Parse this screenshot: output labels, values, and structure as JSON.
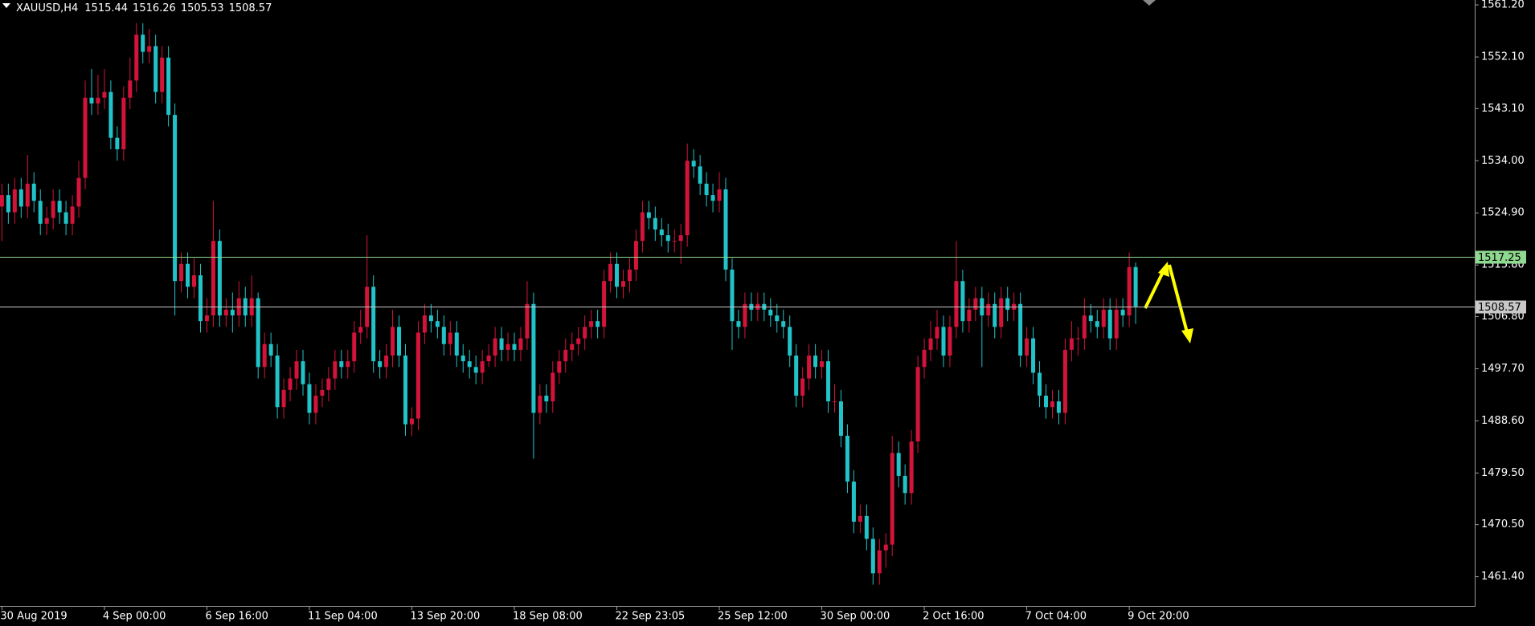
{
  "chart_data": {
    "type": "candlestick",
    "symbol": "XAUUSD,H4",
    "up_color": "#d2143a",
    "down_color": "#22c3c8",
    "ylim": [
      1456.3,
      1562.05
    ],
    "yticks": [
      {
        "value": 1461.4,
        "label": "1461.40"
      },
      {
        "value": 1470.5,
        "label": "1470.50"
      },
      {
        "value": 1479.5,
        "label": "1479.50"
      },
      {
        "value": 1488.6,
        "label": "1488.60"
      },
      {
        "value": 1497.7,
        "label": "1497.70"
      },
      {
        "value": 1506.8,
        "label": "1506.80"
      },
      {
        "value": 1515.8,
        "label": "1515.80"
      },
      {
        "value": 1524.9,
        "label": "1524.90"
      },
      {
        "value": 1534,
        "label": "1534.00"
      },
      {
        "value": 1543.1,
        "label": "1543.10"
      },
      {
        "value": 1552.1,
        "label": "1552.10"
      },
      {
        "value": 1561.2,
        "label": "1561.20"
      }
    ],
    "hlines": [
      {
        "value": 1517.25,
        "color": "#8fd88f"
      },
      {
        "value": 1508.57,
        "color": "#c8c8c8"
      }
    ],
    "categories": [
      "30 Aug 2019",
      null,
      null,
      null,
      null,
      null,
      null,
      null,
      null,
      null,
      null,
      null,
      null,
      null,
      null,
      null,
      "4 Sep 00:00",
      null,
      null,
      null,
      null,
      null,
      null,
      null,
      null,
      null,
      null,
      null,
      null,
      null,
      null,
      null,
      "6 Sep 16:00",
      null,
      null,
      null,
      null,
      null,
      null,
      null,
      null,
      null,
      null,
      null,
      null,
      null,
      null,
      null,
      "11 Sep 04:00",
      null,
      null,
      null,
      null,
      null,
      null,
      null,
      null,
      null,
      null,
      null,
      null,
      null,
      null,
      null,
      "13 Sep 20:00",
      null,
      null,
      null,
      null,
      null,
      null,
      null,
      null,
      null,
      null,
      null,
      null,
      null,
      null,
      null,
      "18 Sep 08:00",
      null,
      null,
      null,
      null,
      null,
      null,
      null,
      null,
      null,
      null,
      null,
      null,
      null,
      null,
      null,
      "22 Sep 23:05",
      null,
      null,
      null,
      null,
      null,
      null,
      null,
      null,
      null,
      null,
      null,
      null,
      null,
      null,
      null,
      "25 Sep 12:00",
      null,
      null,
      null,
      null,
      null,
      null,
      null,
      null,
      null,
      null,
      null,
      null,
      null,
      null,
      null,
      "30 Sep 00:00",
      null,
      null,
      null,
      null,
      null,
      null,
      null,
      null,
      null,
      null,
      null,
      null,
      null,
      null,
      null,
      "2 Oct 16:00",
      null,
      null,
      null,
      null,
      null,
      null,
      null,
      null,
      null,
      null,
      null,
      null,
      null,
      null,
      null,
      "7 Oct 04:00",
      null,
      null,
      null,
      null,
      null,
      null,
      null,
      null,
      null,
      null,
      null,
      null,
      null,
      null,
      null,
      "9 Oct 20:00",
      null
    ],
    "candles": [
      [
        1526,
        1530,
        1520,
        1528
      ],
      [
        1528,
        1530,
        1523,
        1525
      ],
      [
        1525,
        1531,
        1523,
        1529
      ],
      [
        1529,
        1531,
        1524,
        1526
      ],
      [
        1526,
        1535,
        1524,
        1530
      ],
      [
        1530,
        1532,
        1525,
        1527
      ],
      [
        1527,
        1529,
        1521,
        1523
      ],
      [
        1523,
        1526,
        1521,
        1524
      ],
      [
        1524,
        1529,
        1522,
        1527
      ],
      [
        1527,
        1529,
        1523,
        1525
      ],
      [
        1525,
        1527,
        1521,
        1523
      ],
      [
        1523,
        1528,
        1521,
        1526
      ],
      [
        1526,
        1534,
        1524,
        1531
      ],
      [
        1531,
        1548,
        1529,
        1545
      ],
      [
        1545,
        1550,
        1542,
        1544
      ],
      [
        1544,
        1549,
        1542,
        1545
      ],
      [
        1545,
        1550,
        1543,
        1546
      ],
      [
        1546,
        1548,
        1536,
        1538
      ],
      [
        1538,
        1540,
        1534,
        1536
      ],
      [
        1536,
        1547,
        1534,
        1545
      ],
      [
        1545,
        1552,
        1543,
        1548
      ],
      [
        1548,
        1558,
        1546,
        1556
      ],
      [
        1556,
        1558,
        1551,
        1553
      ],
      [
        1553,
        1557,
        1551,
        1554
      ],
      [
        1554,
        1556,
        1544,
        1546
      ],
      [
        1546,
        1554,
        1544,
        1552
      ],
      [
        1552,
        1554,
        1540,
        1542
      ],
      [
        1542,
        1544,
        1507,
        1513
      ],
      [
        1513,
        1518,
        1511,
        1516
      ],
      [
        1516,
        1518,
        1510,
        1512
      ],
      [
        1512,
        1517,
        1510,
        1514
      ],
      [
        1514,
        1516,
        1504,
        1506
      ],
      [
        1506,
        1510,
        1504,
        1507
      ],
      [
        1507,
        1527,
        1505,
        1520
      ],
      [
        1520,
        1522,
        1505,
        1507
      ],
      [
        1507,
        1510,
        1505,
        1508
      ],
      [
        1508,
        1511,
        1504,
        1507
      ],
      [
        1507,
        1513,
        1505,
        1510
      ],
      [
        1510,
        1512,
        1505,
        1507
      ],
      [
        1507,
        1514,
        1505,
        1510
      ],
      [
        1510,
        1511,
        1496,
        1498
      ],
      [
        1498,
        1504,
        1496,
        1502
      ],
      [
        1502,
        1504,
        1498,
        1500
      ],
      [
        1500,
        1502,
        1489,
        1491
      ],
      [
        1491,
        1496,
        1489,
        1494
      ],
      [
        1494,
        1498,
        1492,
        1496
      ],
      [
        1496,
        1501,
        1494,
        1499
      ],
      [
        1499,
        1501,
        1493,
        1495
      ],
      [
        1495,
        1497,
        1488,
        1490
      ],
      [
        1490,
        1495,
        1488,
        1493
      ],
      [
        1493,
        1496,
        1491,
        1494
      ],
      [
        1494,
        1498,
        1492,
        1496
      ],
      [
        1496,
        1501,
        1494,
        1499
      ],
      [
        1499,
        1501,
        1496,
        1498
      ],
      [
        1498,
        1501,
        1496,
        1499
      ],
      [
        1499,
        1506,
        1497,
        1504
      ],
      [
        1504,
        1508,
        1502,
        1505
      ],
      [
        1505,
        1521,
        1503,
        1512
      ],
      [
        1512,
        1514,
        1497,
        1499
      ],
      [
        1499,
        1501,
        1496,
        1498
      ],
      [
        1498,
        1502,
        1496,
        1500
      ],
      [
        1500,
        1508,
        1498,
        1505
      ],
      [
        1505,
        1507,
        1498,
        1500
      ],
      [
        1500,
        1502,
        1486,
        1488
      ],
      [
        1488,
        1491,
        1486,
        1489
      ],
      [
        1489,
        1506,
        1487,
        1504
      ],
      [
        1504,
        1509,
        1502,
        1507
      ],
      [
        1507,
        1509,
        1504,
        1506
      ],
      [
        1506,
        1508,
        1503,
        1505
      ],
      [
        1505,
        1507,
        1500,
        1502
      ],
      [
        1502,
        1506,
        1500,
        1504
      ],
      [
        1504,
        1506,
        1498,
        1500
      ],
      [
        1500,
        1502,
        1497,
        1499
      ],
      [
        1499,
        1501,
        1496,
        1498
      ],
      [
        1498,
        1500,
        1495,
        1497
      ],
      [
        1497,
        1501,
        1495,
        1499
      ],
      [
        1499,
        1502,
        1498,
        1500
      ],
      [
        1500,
        1505,
        1498,
        1503
      ],
      [
        1503,
        1505,
        1499,
        1501
      ],
      [
        1501,
        1504,
        1499,
        1502
      ],
      [
        1502,
        1504,
        1499,
        1501
      ],
      [
        1501,
        1505,
        1499,
        1503
      ],
      [
        1503,
        1513,
        1501,
        1509
      ],
      [
        1509,
        1511,
        1482,
        1490
      ],
      [
        1490,
        1495,
        1488,
        1493
      ],
      [
        1493,
        1495,
        1490,
        1492
      ],
      [
        1492,
        1499,
        1490,
        1497
      ],
      [
        1497,
        1501,
        1495,
        1499
      ],
      [
        1499,
        1503,
        1497,
        1501
      ],
      [
        1501,
        1504,
        1499,
        1502
      ],
      [
        1502,
        1505,
        1500,
        1503
      ],
      [
        1503,
        1507,
        1501,
        1505
      ],
      [
        1505,
        1508,
        1503,
        1506
      ],
      [
        1506,
        1508,
        1503,
        1505
      ],
      [
        1505,
        1515,
        1503,
        1513
      ],
      [
        1513,
        1518,
        1511,
        1516
      ],
      [
        1516,
        1518,
        1510,
        1512
      ],
      [
        1512,
        1515,
        1510,
        1513
      ],
      [
        1513,
        1517,
        1511,
        1515
      ],
      [
        1515,
        1522,
        1513,
        1520
      ],
      [
        1520,
        1527,
        1518,
        1525
      ],
      [
        1525,
        1527,
        1522,
        1524
      ],
      [
        1524,
        1526,
        1520,
        1522
      ],
      [
        1522,
        1524,
        1519,
        1521
      ],
      [
        1521,
        1523,
        1518,
        1520
      ],
      [
        1520,
        1522,
        1518,
        1520
      ],
      [
        1520,
        1523,
        1516,
        1521
      ],
      [
        1521,
        1537,
        1519,
        1534
      ],
      [
        1534,
        1536,
        1531,
        1533
      ],
      [
        1533,
        1535,
        1528,
        1530
      ],
      [
        1530,
        1532,
        1526,
        1528
      ],
      [
        1528,
        1530,
        1525,
        1527
      ],
      [
        1527,
        1532,
        1525,
        1529
      ],
      [
        1529,
        1531,
        1513,
        1515
      ],
      [
        1515,
        1517,
        1501,
        1506
      ],
      [
        1506,
        1508,
        1503,
        1505
      ],
      [
        1505,
        1511,
        1503,
        1509
      ],
      [
        1509,
        1511,
        1506,
        1508
      ],
      [
        1508,
        1511,
        1506,
        1509
      ],
      [
        1509,
        1511,
        1506,
        1508
      ],
      [
        1508,
        1510,
        1505,
        1507
      ],
      [
        1507,
        1509,
        1504,
        1506
      ],
      [
        1506,
        1508,
        1503,
        1505
      ],
      [
        1505,
        1507,
        1498,
        1500
      ],
      [
        1500,
        1502,
        1491,
        1493
      ],
      [
        1493,
        1498,
        1491,
        1496
      ],
      [
        1496,
        1502,
        1494,
        1500
      ],
      [
        1500,
        1502,
        1496,
        1498
      ],
      [
        1498,
        1501,
        1496,
        1499
      ],
      [
        1499,
        1501,
        1490,
        1492
      ],
      [
        1492,
        1495,
        1490,
        1492
      ],
      [
        1492,
        1494,
        1484,
        1486
      ],
      [
        1486,
        1488,
        1476,
        1478
      ],
      [
        1478,
        1480,
        1469,
        1471
      ],
      [
        1471,
        1474,
        1469,
        1472
      ],
      [
        1472,
        1474,
        1466,
        1468
      ],
      [
        1468,
        1470,
        1460,
        1462
      ],
      [
        1462,
        1468,
        1460,
        1466
      ],
      [
        1466,
        1469,
        1463,
        1467
      ],
      [
        1467,
        1486,
        1465,
        1483
      ],
      [
        1483,
        1485,
        1477,
        1479
      ],
      [
        1479,
        1481,
        1474,
        1476
      ],
      [
        1476,
        1487,
        1474,
        1485
      ],
      [
        1485,
        1500,
        1483,
        1498
      ],
      [
        1498,
        1503,
        1496,
        1501
      ],
      [
        1501,
        1506,
        1499,
        1503
      ],
      [
        1503,
        1508,
        1501,
        1505
      ],
      [
        1505,
        1507,
        1498,
        1500
      ],
      [
        1500,
        1507,
        1498,
        1505
      ],
      [
        1505,
        1520,
        1503,
        1513
      ],
      [
        1513,
        1515,
        1504,
        1506
      ],
      [
        1506,
        1510,
        1504,
        1508
      ],
      [
        1508,
        1512,
        1506,
        1510
      ],
      [
        1510,
        1512,
        1498,
        1507
      ],
      [
        1507,
        1511,
        1505,
        1509
      ],
      [
        1509,
        1511,
        1503,
        1505
      ],
      [
        1505,
        1512,
        1503,
        1510
      ],
      [
        1510,
        1512,
        1506,
        1508
      ],
      [
        1508,
        1511,
        1506,
        1509
      ],
      [
        1509,
        1511,
        1498,
        1500
      ],
      [
        1500,
        1505,
        1498,
        1503
      ],
      [
        1503,
        1505,
        1495,
        1497
      ],
      [
        1497,
        1499,
        1491,
        1493
      ],
      [
        1493,
        1495,
        1489,
        1491
      ],
      [
        1491,
        1494,
        1489,
        1492
      ],
      [
        1492,
        1494,
        1488,
        1490
      ],
      [
        1490,
        1503,
        1488,
        1501
      ],
      [
        1501,
        1506,
        1499,
        1503
      ],
      [
        1503,
        1505,
        1500,
        1503
      ],
      [
        1503,
        1510,
        1501,
        1507
      ],
      [
        1507,
        1509,
        1504,
        1506
      ],
      [
        1506,
        1508,
        1503,
        1505
      ],
      [
        1505,
        1510,
        1503,
        1508
      ],
      [
        1508,
        1510,
        1501,
        1503
      ],
      [
        1503,
        1510,
        1501,
        1508
      ],
      [
        1508,
        1510,
        1505,
        1507
      ],
      [
        1507,
        1518,
        1505,
        1515.44
      ],
      [
        1515.44,
        1516.26,
        1505.53,
        1508.57
      ]
    ]
  }
}
